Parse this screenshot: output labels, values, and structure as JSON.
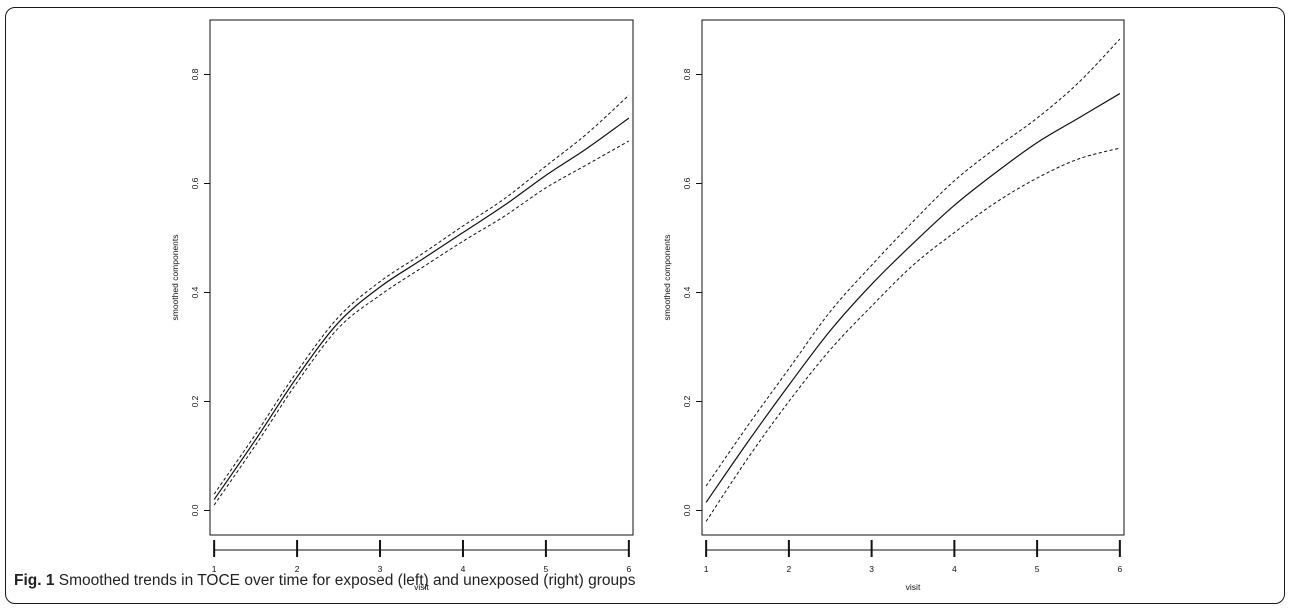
{
  "caption": {
    "label": "Fig. 1",
    "text": "Smoothed trends in TOCE over time for exposed (left) and unexposed (right) groups"
  },
  "chart_data": [
    {
      "type": "line",
      "title": "",
      "xlabel": "visit",
      "ylabel": "smoothed components",
      "xlim": [
        0.95,
        6.05
      ],
      "ylim": [
        -0.045,
        0.9
      ],
      "xticks": [
        1,
        2,
        3,
        4,
        5,
        6
      ],
      "yticks": [
        0.0,
        0.2,
        0.4,
        0.6,
        0.8
      ],
      "ytick_labels": [
        "0.0",
        "0.2",
        "0.4",
        "0.6",
        "0.8"
      ],
      "grid": false,
      "legend": "none",
      "x": [
        1,
        1.5,
        2,
        2.5,
        3,
        3.5,
        4,
        4.5,
        5,
        5.5,
        6
      ],
      "series": [
        {
          "values": [
            0.02,
            0.13,
            0.245,
            0.345,
            0.41,
            0.46,
            0.51,
            0.56,
            0.615,
            0.665,
            0.72
          ],
          "style": "solid"
        },
        {
          "values": [
            0.03,
            0.14,
            0.255,
            0.355,
            0.42,
            0.47,
            0.522,
            0.572,
            0.632,
            0.692,
            0.762
          ],
          "style": "dashed"
        },
        {
          "values": [
            0.01,
            0.12,
            0.235,
            0.335,
            0.395,
            0.445,
            0.494,
            0.54,
            0.592,
            0.635,
            0.678
          ],
          "style": "dashed"
        }
      ]
    },
    {
      "type": "line",
      "title": "",
      "xlabel": "visit",
      "ylabel": "smoothed components",
      "xlim": [
        0.95,
        6.05
      ],
      "ylim": [
        -0.045,
        0.9
      ],
      "xticks": [
        1,
        2,
        3,
        4,
        5,
        6
      ],
      "yticks": [
        0.0,
        0.2,
        0.4,
        0.6,
        0.8
      ],
      "ytick_labels": [
        "0.0",
        "0.2",
        "0.4",
        "0.6",
        "0.8"
      ],
      "grid": false,
      "legend": "none",
      "x": [
        1,
        1.5,
        2,
        2.5,
        3,
        3.5,
        4,
        4.5,
        5,
        5.5,
        6
      ],
      "series": [
        {
          "values": [
            0.015,
            0.125,
            0.23,
            0.33,
            0.415,
            0.49,
            0.56,
            0.62,
            0.675,
            0.72,
            0.765
          ],
          "style": "solid"
        },
        {
          "values": [
            0.045,
            0.155,
            0.26,
            0.365,
            0.45,
            0.53,
            0.605,
            0.665,
            0.72,
            0.785,
            0.865
          ],
          "style": "dashed"
        },
        {
          "values": [
            -0.02,
            0.095,
            0.2,
            0.295,
            0.375,
            0.45,
            0.51,
            0.565,
            0.61,
            0.645,
            0.665
          ],
          "style": "dashed"
        }
      ]
    }
  ]
}
